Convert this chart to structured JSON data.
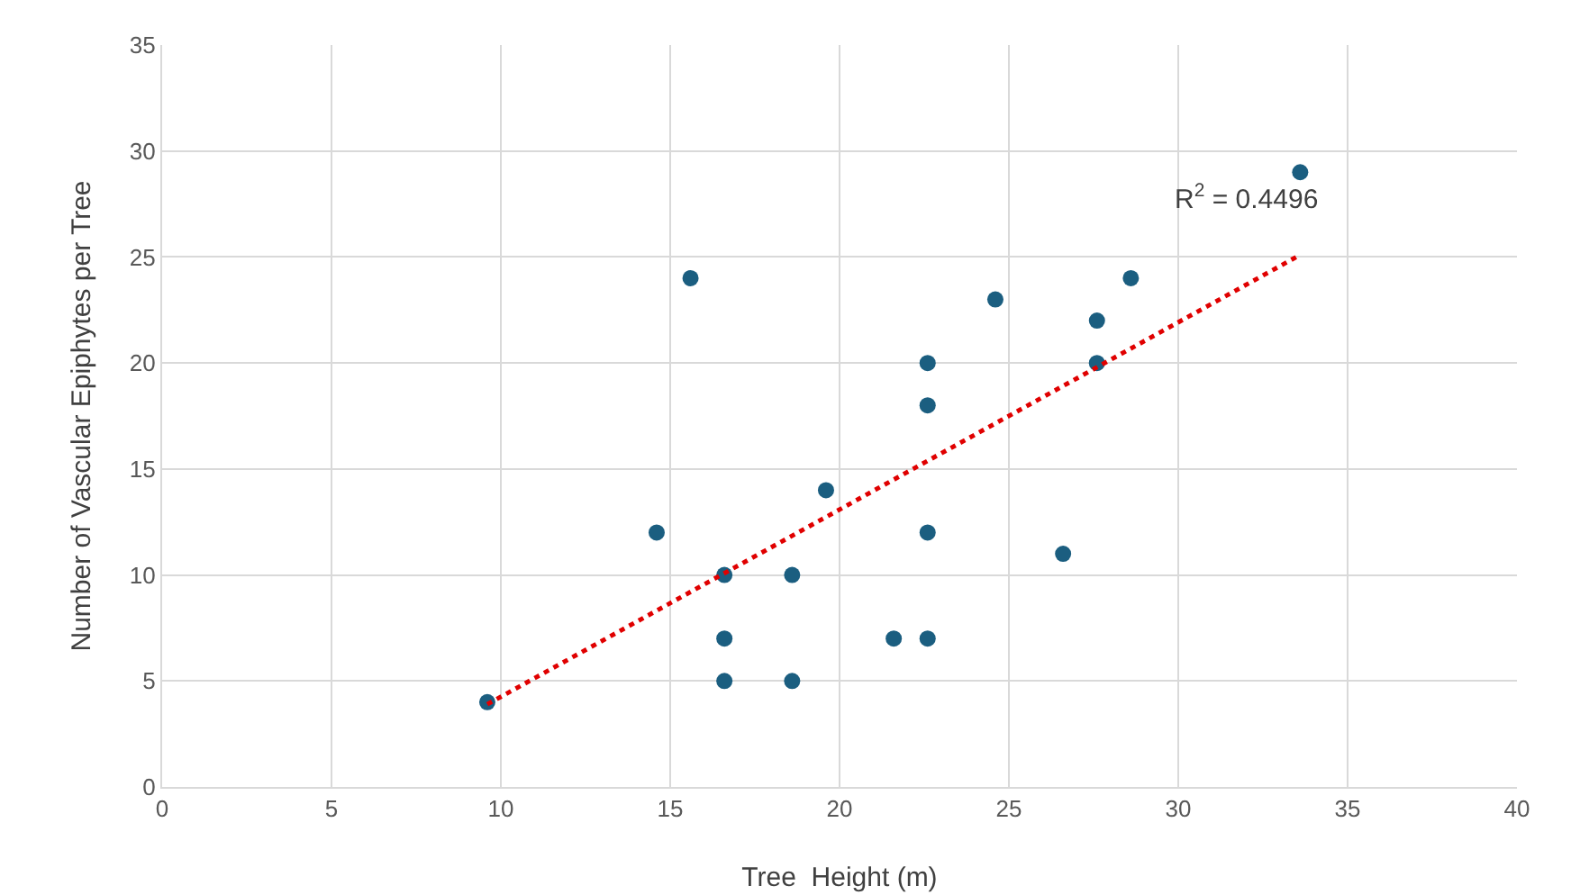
{
  "chart_data": {
    "type": "scatter",
    "xlabel": "Tree  Height (m)",
    "ylabel": "Number of Vascular Epiphytes per Tree",
    "x": [
      9.6,
      14.6,
      15.6,
      16.6,
      16.6,
      16.6,
      18.6,
      18.6,
      19.6,
      21.6,
      22.6,
      22.6,
      22.6,
      22.6,
      24.6,
      26.6,
      27.6,
      27.6,
      28.6,
      33.6
    ],
    "series": [
      {
        "color": "#1b5e80",
        "marker": "circle",
        "values": [
          4,
          12,
          24,
          10,
          7,
          5,
          10,
          5,
          14,
          7,
          20,
          18,
          12,
          7,
          23,
          11,
          22,
          20,
          24,
          29
        ]
      },
      {
        "type": "line",
        "color": "#e00000",
        "marker": "none",
        "line_style": "dotted",
        "x": [
          9.6,
          33.6
        ],
        "values": [
          3.9,
          25.1
        ]
      }
    ],
    "xlim": [
      0,
      40
    ],
    "xticks": [
      0,
      5,
      10,
      15,
      20,
      25,
      30,
      35,
      40
    ],
    "ylim": [
      0,
      35
    ],
    "yticks": [
      0,
      5,
      10,
      15,
      20,
      25,
      30,
      35
    ],
    "grid": true,
    "annotations": [
      "R$^{2}$ = 0.4496"
    ]
  }
}
